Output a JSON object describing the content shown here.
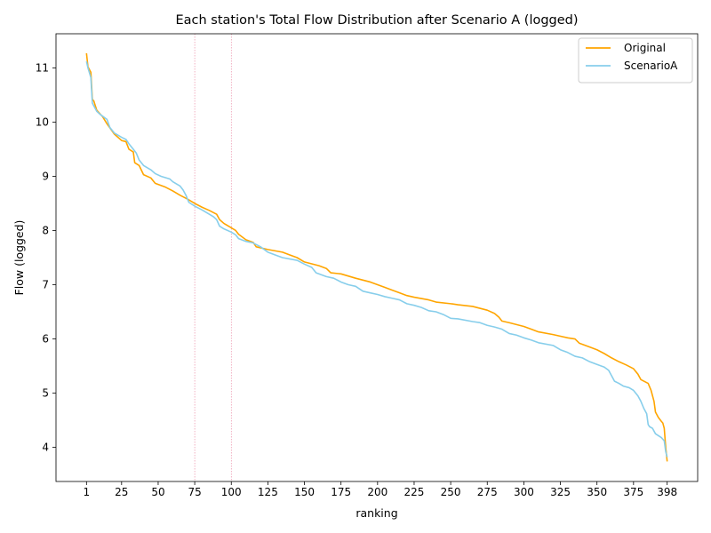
{
  "chart_data": {
    "type": "line",
    "title": "Each station's Total Flow Distribution after Scenario A (logged)",
    "xlabel": "ranking",
    "ylabel": "Flow (logged)",
    "xlim": [
      -19.85,
      418.85
    ],
    "ylim": [
      3.37,
      11.63
    ],
    "xticks": [
      1,
      25,
      50,
      75,
      100,
      125,
      150,
      175,
      200,
      225,
      250,
      275,
      300,
      325,
      350,
      375,
      398
    ],
    "yticks": [
      4,
      5,
      6,
      7,
      8,
      9,
      10,
      11
    ],
    "vlines": [
      75,
      100
    ],
    "legend_position": "top-right",
    "grid": false,
    "series": [
      {
        "name": "Original",
        "color": "#ffa500",
        "points": [
          [
            1,
            11.27
          ],
          [
            2,
            11.02
          ],
          [
            4,
            10.92
          ],
          [
            5,
            10.42
          ],
          [
            6,
            10.39
          ],
          [
            8,
            10.22
          ],
          [
            12,
            10.1
          ],
          [
            15,
            9.97
          ],
          [
            20,
            9.78
          ],
          [
            25,
            9.66
          ],
          [
            28,
            9.64
          ],
          [
            30,
            9.5
          ],
          [
            33,
            9.45
          ],
          [
            34,
            9.25
          ],
          [
            37,
            9.2
          ],
          [
            40,
            9.03
          ],
          [
            45,
            8.97
          ],
          [
            48,
            8.87
          ],
          [
            55,
            8.8
          ],
          [
            60,
            8.73
          ],
          [
            65,
            8.65
          ],
          [
            70,
            8.58
          ],
          [
            75,
            8.5
          ],
          [
            80,
            8.43
          ],
          [
            85,
            8.37
          ],
          [
            90,
            8.3
          ],
          [
            92,
            8.2
          ],
          [
            95,
            8.13
          ],
          [
            100,
            8.05
          ],
          [
            103,
            8.0
          ],
          [
            105,
            7.93
          ],
          [
            110,
            7.83
          ],
          [
            115,
            7.78
          ],
          [
            117,
            7.7
          ],
          [
            125,
            7.65
          ],
          [
            135,
            7.6
          ],
          [
            140,
            7.55
          ],
          [
            145,
            7.5
          ],
          [
            150,
            7.42
          ],
          [
            160,
            7.35
          ],
          [
            165,
            7.3
          ],
          [
            168,
            7.22
          ],
          [
            175,
            7.2
          ],
          [
            185,
            7.12
          ],
          [
            195,
            7.05
          ],
          [
            200,
            7.0
          ],
          [
            205,
            6.95
          ],
          [
            210,
            6.9
          ],
          [
            215,
            6.85
          ],
          [
            220,
            6.8
          ],
          [
            225,
            6.77
          ],
          [
            235,
            6.72
          ],
          [
            240,
            6.68
          ],
          [
            250,
            6.65
          ],
          [
            255,
            6.63
          ],
          [
            265,
            6.6
          ],
          [
            275,
            6.53
          ],
          [
            280,
            6.47
          ],
          [
            283,
            6.4
          ],
          [
            285,
            6.33
          ],
          [
            290,
            6.3
          ],
          [
            300,
            6.23
          ],
          [
            305,
            6.18
          ],
          [
            310,
            6.13
          ],
          [
            320,
            6.08
          ],
          [
            330,
            6.02
          ],
          [
            335,
            6.0
          ],
          [
            338,
            5.92
          ],
          [
            345,
            5.85
          ],
          [
            350,
            5.8
          ],
          [
            355,
            5.73
          ],
          [
            360,
            5.65
          ],
          [
            365,
            5.58
          ],
          [
            370,
            5.52
          ],
          [
            375,
            5.45
          ],
          [
            378,
            5.35
          ],
          [
            380,
            5.25
          ],
          [
            385,
            5.18
          ],
          [
            387,
            5.05
          ],
          [
            389,
            4.85
          ],
          [
            390,
            4.65
          ],
          [
            392,
            4.55
          ],
          [
            394,
            4.48
          ],
          [
            395,
            4.45
          ],
          [
            396,
            4.35
          ],
          [
            397,
            4.0
          ],
          [
            398,
            3.74
          ]
        ]
      },
      {
        "name": "ScenarioA",
        "color": "#87ceeb",
        "points": [
          [
            1,
            11.12
          ],
          [
            2,
            11.0
          ],
          [
            4,
            10.82
          ],
          [
            5,
            10.35
          ],
          [
            6,
            10.3
          ],
          [
            8,
            10.2
          ],
          [
            10,
            10.15
          ],
          [
            15,
            10.05
          ],
          [
            17,
            9.9
          ],
          [
            20,
            9.8
          ],
          [
            25,
            9.72
          ],
          [
            28,
            9.68
          ],
          [
            30,
            9.6
          ],
          [
            33,
            9.5
          ],
          [
            35,
            9.43
          ],
          [
            37,
            9.3
          ],
          [
            40,
            9.2
          ],
          [
            45,
            9.12
          ],
          [
            48,
            9.05
          ],
          [
            52,
            9.0
          ],
          [
            58,
            8.95
          ],
          [
            60,
            8.9
          ],
          [
            65,
            8.82
          ],
          [
            67,
            8.75
          ],
          [
            69,
            8.65
          ],
          [
            71,
            8.52
          ],
          [
            75,
            8.45
          ],
          [
            80,
            8.38
          ],
          [
            85,
            8.3
          ],
          [
            88,
            8.25
          ],
          [
            90,
            8.2
          ],
          [
            92,
            8.08
          ],
          [
            95,
            8.03
          ],
          [
            100,
            7.97
          ],
          [
            103,
            7.92
          ],
          [
            105,
            7.85
          ],
          [
            110,
            7.8
          ],
          [
            115,
            7.77
          ],
          [
            120,
            7.7
          ],
          [
            125,
            7.6
          ],
          [
            130,
            7.55
          ],
          [
            135,
            7.5
          ],
          [
            145,
            7.45
          ],
          [
            150,
            7.38
          ],
          [
            155,
            7.32
          ],
          [
            158,
            7.22
          ],
          [
            165,
            7.15
          ],
          [
            170,
            7.12
          ],
          [
            175,
            7.05
          ],
          [
            180,
            7.0
          ],
          [
            185,
            6.97
          ],
          [
            190,
            6.88
          ],
          [
            195,
            6.85
          ],
          [
            200,
            6.82
          ],
          [
            205,
            6.78
          ],
          [
            210,
            6.75
          ],
          [
            215,
            6.72
          ],
          [
            220,
            6.65
          ],
          [
            225,
            6.62
          ],
          [
            230,
            6.58
          ],
          [
            235,
            6.52
          ],
          [
            240,
            6.5
          ],
          [
            245,
            6.45
          ],
          [
            250,
            6.38
          ],
          [
            255,
            6.37
          ],
          [
            265,
            6.32
          ],
          [
            270,
            6.3
          ],
          [
            275,
            6.25
          ],
          [
            280,
            6.22
          ],
          [
            285,
            6.18
          ],
          [
            290,
            6.1
          ],
          [
            295,
            6.07
          ],
          [
            300,
            6.02
          ],
          [
            305,
            5.98
          ],
          [
            310,
            5.93
          ],
          [
            320,
            5.88
          ],
          [
            325,
            5.8
          ],
          [
            330,
            5.75
          ],
          [
            335,
            5.68
          ],
          [
            340,
            5.65
          ],
          [
            345,
            5.58
          ],
          [
            350,
            5.53
          ],
          [
            355,
            5.48
          ],
          [
            358,
            5.42
          ],
          [
            360,
            5.32
          ],
          [
            362,
            5.22
          ],
          [
            365,
            5.18
          ],
          [
            368,
            5.13
          ],
          [
            372,
            5.1
          ],
          [
            375,
            5.05
          ],
          [
            378,
            4.95
          ],
          [
            380,
            4.85
          ],
          [
            382,
            4.72
          ],
          [
            384,
            4.62
          ],
          [
            385,
            4.42
          ],
          [
            386,
            4.38
          ],
          [
            388,
            4.35
          ],
          [
            390,
            4.25
          ],
          [
            394,
            4.18
          ],
          [
            396,
            4.12
          ],
          [
            397,
            3.92
          ],
          [
            398,
            3.82
          ]
        ]
      }
    ]
  }
}
